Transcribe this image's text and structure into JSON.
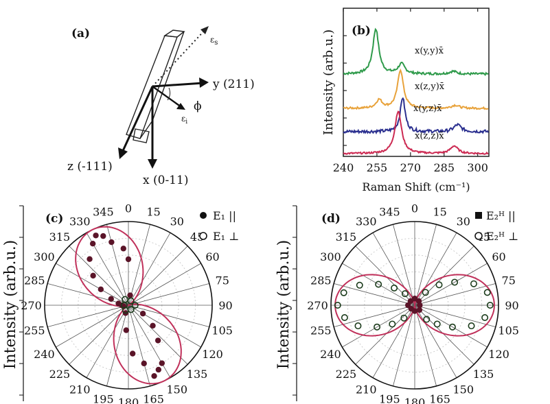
{
  "figure": {
    "panels": {
      "a": {
        "label": "(a)",
        "axes": [
          {
            "id": "y",
            "text": "y (211)"
          },
          {
            "id": "z",
            "text": "z (-111)"
          },
          {
            "id": "x",
            "text": "x (0-11)"
          }
        ],
        "e_s": "ε",
        "e_s_sub": "s",
        "e_i": "ε",
        "e_i_sub": "i",
        "phi": "ϕ"
      },
      "b": {
        "label": "(b)"
      },
      "c": {
        "label": "(c)"
      },
      "d": {
        "label": "(d)"
      }
    },
    "colors": {
      "green": "#2e9a4a",
      "orange": "#e8a23a",
      "blue": "#2a2f8f",
      "red": "#cc2a52",
      "fit": "#c0305a",
      "dots_filled": "#5a1428",
      "grid": "#cccccc"
    }
  },
  "chart_data": [
    {
      "panel": "b",
      "type": "line",
      "xlabel": "Raman Shift (cm⁻¹)",
      "ylabel": "Intensity (arb.u.)",
      "xlim": [
        240,
        305
      ],
      "x_ticks": [
        "240",
        "255",
        "270",
        "285",
        "300"
      ],
      "series": [
        {
          "name": "x(y,y)x̄",
          "color": "green",
          "peaks": [
            [
              254.5,
              1.0,
              1.6
            ],
            [
              266,
              0.22,
              1.8
            ],
            [
              289,
              0.06,
              2.0
            ]
          ],
          "baseline": 0.0,
          "noise": 0.05
        },
        {
          "name": "x(z,y)x̄",
          "color": "orange",
          "peaks": [
            [
              256,
              0.22,
              1.6
            ],
            [
              265.5,
              1.0,
              1.6
            ],
            [
              290,
              0.08,
              2.0
            ]
          ],
          "baseline": 0.0,
          "noise": 0.05
        },
        {
          "name": "x(y,z)x̄",
          "color": "blue",
          "peaks": [
            [
              266.5,
              1.0,
              1.3
            ],
            [
              291,
              0.2,
              2.0
            ]
          ],
          "baseline": 0.0,
          "noise": 0.09
        },
        {
          "name": "x(z,z)x̄",
          "color": "red",
          "peaks": [
            [
              264.5,
              1.0,
              1.8
            ],
            [
              289.5,
              0.18,
              2.0
            ]
          ],
          "baseline": 0.0,
          "noise": 0.04
        }
      ]
    },
    {
      "panel": "c",
      "type": "scatter",
      "subtype": "polar",
      "ylabel": "Intensity (arb.u.)",
      "angle_labels": [
        "0",
        "15",
        "30",
        "45",
        "60",
        "75",
        "90",
        "105",
        "120",
        "135",
        "150",
        "165",
        "180",
        "195",
        "210",
        "225",
        "240",
        "255",
        "270",
        "285",
        "300",
        "315",
        "330",
        "345"
      ],
      "legend": [
        {
          "name": "E₁ ||",
          "marker": "filled"
        },
        {
          "name": "E₁ ⊥",
          "marker": "open"
        }
      ],
      "fit": {
        "amplitude": 1.0,
        "lobe_angle_deg": 335,
        "shape": "cos2"
      },
      "points": [
        {
          "angle": 335,
          "r": 0.92,
          "marker": "filled"
        },
        {
          "angle": 330,
          "r": 0.85,
          "marker": "filled"
        },
        {
          "angle": 340,
          "r": 0.88,
          "marker": "filled"
        },
        {
          "angle": 320,
          "r": 0.72,
          "marker": "filled"
        },
        {
          "angle": 345,
          "r": 0.78,
          "marker": "filled"
        },
        {
          "angle": 310,
          "r": 0.55,
          "marker": "filled"
        },
        {
          "angle": 300,
          "r": 0.38,
          "marker": "filled"
        },
        {
          "angle": 290,
          "r": 0.22,
          "marker": "filled"
        },
        {
          "angle": 280,
          "r": 0.12,
          "marker": "filled"
        },
        {
          "angle": 270,
          "r": 0.08,
          "marker": "filled"
        },
        {
          "angle": 260,
          "r": 0.06,
          "marker": "filled"
        },
        {
          "angle": 0,
          "r": 0.55,
          "marker": "filled"
        },
        {
          "angle": 355,
          "r": 0.68,
          "marker": "filled"
        },
        {
          "angle": 10,
          "r": 0.12,
          "marker": "filled"
        },
        {
          "angle": 155,
          "r": 0.85,
          "marker": "filled"
        },
        {
          "angle": 160,
          "r": 0.9,
          "marker": "filled"
        },
        {
          "angle": 150,
          "r": 0.8,
          "marker": "filled"
        },
        {
          "angle": 165,
          "r": 0.72,
          "marker": "filled"
        },
        {
          "angle": 140,
          "r": 0.55,
          "marker": "filled"
        },
        {
          "angle": 130,
          "r": 0.38,
          "marker": "filled"
        },
        {
          "angle": 175,
          "r": 0.58,
          "marker": "filled"
        },
        {
          "angle": 120,
          "r": 0.2,
          "marker": "filled"
        },
        {
          "angle": 185,
          "r": 0.3,
          "marker": "filled"
        },
        {
          "angle": 200,
          "r": 0.1,
          "marker": "filled"
        },
        {
          "angle": 30,
          "r": 0.06,
          "marker": "open"
        },
        {
          "angle": 90,
          "r": 0.08,
          "marker": "open"
        },
        {
          "angle": 150,
          "r": 0.06,
          "marker": "open"
        },
        {
          "angle": 210,
          "r": 0.07,
          "marker": "open"
        },
        {
          "angle": 270,
          "r": 0.05,
          "marker": "open"
        },
        {
          "angle": 330,
          "r": 0.08,
          "marker": "open"
        }
      ]
    },
    {
      "panel": "d",
      "type": "scatter",
      "subtype": "polar",
      "ylabel": "Intensity (arb.u.)",
      "angle_labels": [
        "0",
        "15",
        "30",
        "45",
        "60",
        "75",
        "90",
        "105",
        "120",
        "135",
        "150",
        "165",
        "180",
        "195",
        "210",
        "225",
        "240",
        "255",
        "270",
        "285",
        "300",
        "315",
        "330",
        "345"
      ],
      "legend": [
        {
          "name": "E₂ᴴ ||",
          "marker": "filled"
        },
        {
          "name": "E₂ᴴ ⊥",
          "marker": "open"
        }
      ],
      "fit": {
        "amplitude": 0.95,
        "lobe_angle_deg": 90,
        "shape": "cos2"
      },
      "points": [
        {
          "angle": 90,
          "r": 0.9,
          "marker": "open"
        },
        {
          "angle": 80,
          "r": 0.88,
          "marker": "open"
        },
        {
          "angle": 100,
          "r": 0.85,
          "marker": "open"
        },
        {
          "angle": 70,
          "r": 0.75,
          "marker": "open"
        },
        {
          "angle": 110,
          "r": 0.72,
          "marker": "open"
        },
        {
          "angle": 60,
          "r": 0.55,
          "marker": "open"
        },
        {
          "angle": 120,
          "r": 0.52,
          "marker": "open"
        },
        {
          "angle": 50,
          "r": 0.38,
          "marker": "open"
        },
        {
          "angle": 130,
          "r": 0.35,
          "marker": "open"
        },
        {
          "angle": 40,
          "r": 0.2,
          "marker": "open"
        },
        {
          "angle": 140,
          "r": 0.22,
          "marker": "open"
        },
        {
          "angle": 270,
          "r": 0.92,
          "marker": "open"
        },
        {
          "angle": 260,
          "r": 0.85,
          "marker": "open"
        },
        {
          "angle": 280,
          "r": 0.86,
          "marker": "open"
        },
        {
          "angle": 250,
          "r": 0.72,
          "marker": "open"
        },
        {
          "angle": 290,
          "r": 0.7,
          "marker": "open"
        },
        {
          "angle": 240,
          "r": 0.52,
          "marker": "open"
        },
        {
          "angle": 300,
          "r": 0.5,
          "marker": "open"
        },
        {
          "angle": 230,
          "r": 0.35,
          "marker": "open"
        },
        {
          "angle": 310,
          "r": 0.32,
          "marker": "open"
        },
        {
          "angle": 220,
          "r": 0.2,
          "marker": "open"
        },
        {
          "angle": 320,
          "r": 0.18,
          "marker": "open"
        },
        {
          "angle": 0,
          "r": 0.08,
          "marker": "filled"
        },
        {
          "angle": 45,
          "r": 0.07,
          "marker": "filled"
        },
        {
          "angle": 90,
          "r": 0.06,
          "marker": "filled"
        },
        {
          "angle": 135,
          "r": 0.08,
          "marker": "filled"
        },
        {
          "angle": 180,
          "r": 0.07,
          "marker": "filled"
        },
        {
          "angle": 225,
          "r": 0.06,
          "marker": "filled"
        },
        {
          "angle": 270,
          "r": 0.08,
          "marker": "filled"
        },
        {
          "angle": 315,
          "r": 0.07,
          "marker": "filled"
        }
      ]
    }
  ]
}
